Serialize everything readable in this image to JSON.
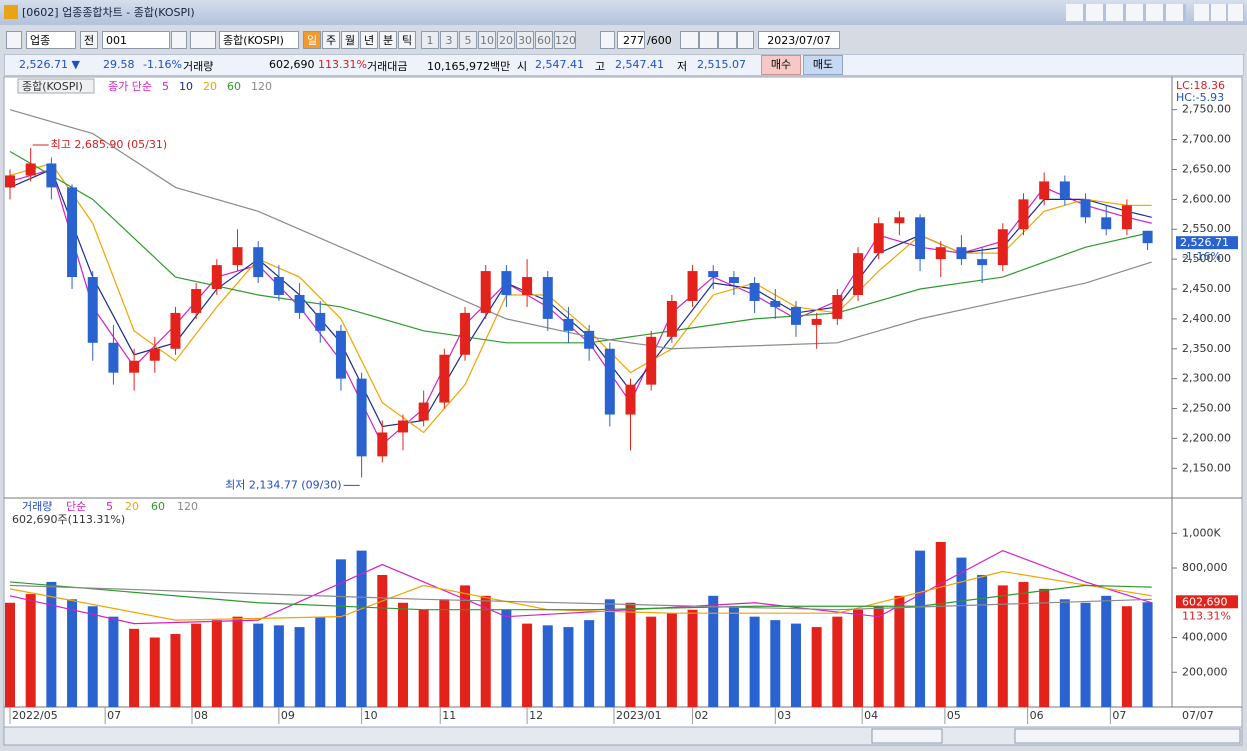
{
  "window": {
    "title": "[0602] 업종종합차트 - 종합(KOSPI)"
  },
  "toolbar": {
    "market": "업종",
    "all": "전",
    "code": "001",
    "name": "종합(KOSPI)",
    "periods": [
      "일",
      "주",
      "월",
      "년",
      "분",
      "틱"
    ],
    "intervals": [
      "1",
      "3",
      "5",
      "10",
      "20",
      "30",
      "60",
      "120"
    ],
    "count": "277",
    "max": "/600",
    "date": "2023/07/07"
  },
  "info": {
    "price": "2,526.71 ▼",
    "change": "29.58",
    "rate": "-1.16%",
    "volume_label": "거래량",
    "volume": "602,690",
    "volume_rate": "113.31%",
    "amount_label": "거래대금",
    "amount": "10,165,972백만",
    "open_label": "시",
    "open": "2,547.41",
    "high_label": "고",
    "high": "2,547.41",
    "low_label": "저",
    "low": "2,515.07",
    "buy": "매수",
    "sell": "매도"
  },
  "chart_data": [
    {
      "type": "candlestick",
      "title": "종합(KOSPI)",
      "legend_label": "종가 단순",
      "up_color": "#e3221b",
      "down_color": "#2a62d0",
      "x": [
        0,
        5,
        10,
        15,
        20,
        25,
        30,
        35,
        40,
        45,
        50,
        55,
        60,
        65,
        70,
        75,
        80,
        85,
        90,
        95,
        100,
        105,
        110,
        115,
        120,
        125,
        130,
        135,
        140,
        145,
        150,
        155,
        160,
        165,
        170,
        175,
        180,
        185,
        190,
        195,
        200,
        205,
        210,
        215,
        220,
        225,
        230,
        235,
        240,
        245,
        250,
        255,
        260,
        265,
        270,
        275
      ],
      "open": [
        2620,
        2640,
        2660,
        2620,
        2470,
        2360,
        2310,
        2330,
        2350,
        2410,
        2450,
        2490,
        2520,
        2470,
        2440,
        2410,
        2380,
        2300,
        2170,
        2210,
        2230,
        2260,
        2340,
        2410,
        2480,
        2440,
        2470,
        2400,
        2380,
        2350,
        2240,
        2290,
        2370,
        2430,
        2480,
        2470,
        2460,
        2430,
        2420,
        2390,
        2400,
        2440,
        2510,
        2560,
        2570,
        2500,
        2520,
        2500,
        2490,
        2550,
        2600,
        2630,
        2600,
        2570,
        2550,
        2547.41
      ],
      "high": [
        2650,
        2685.9,
        2670,
        2625,
        2480,
        2390,
        2350,
        2370,
        2420,
        2460,
        2500,
        2550,
        2530,
        2490,
        2460,
        2430,
        2390,
        2310,
        2230,
        2240,
        2280,
        2350,
        2420,
        2490,
        2490,
        2500,
        2480,
        2420,
        2390,
        2360,
        2300,
        2380,
        2440,
        2490,
        2490,
        2480,
        2470,
        2450,
        2430,
        2410,
        2450,
        2520,
        2570,
        2580,
        2575,
        2530,
        2540,
        2520,
        2560,
        2610,
        2645,
        2640,
        2610,
        2590,
        2600,
        2547.41
      ],
      "low": [
        2600,
        2630,
        2600,
        2450,
        2330,
        2290,
        2280,
        2310,
        2340,
        2400,
        2440,
        2480,
        2460,
        2430,
        2400,
        2360,
        2280,
        2134.77,
        2160,
        2180,
        2220,
        2250,
        2330,
        2400,
        2420,
        2420,
        2380,
        2360,
        2330,
        2220,
        2180,
        2280,
        2360,
        2420,
        2450,
        2440,
        2410,
        2400,
        2370,
        2350,
        2390,
        2430,
        2500,
        2540,
        2480,
        2470,
        2490,
        2460,
        2480,
        2540,
        2590,
        2590,
        2560,
        2540,
        2540,
        2515.07
      ],
      "close": [
        2640,
        2660,
        2620,
        2470,
        2360,
        2310,
        2330,
        2350,
        2410,
        2450,
        2490,
        2520,
        2470,
        2440,
        2410,
        2380,
        2300,
        2170,
        2210,
        2230,
        2260,
        2340,
        2410,
        2480,
        2440,
        2470,
        2400,
        2380,
        2350,
        2240,
        2290,
        2370,
        2430,
        2480,
        2470,
        2460,
        2430,
        2420,
        2390,
        2400,
        2440,
        2510,
        2560,
        2570,
        2500,
        2520,
        2500,
        2490,
        2550,
        2600,
        2630,
        2600,
        2570,
        2550,
        2590,
        2526.71
      ],
      "lines": [
        {
          "name": "5",
          "color": "#d21fc8",
          "x": [
            0,
            10,
            20,
            30,
            40,
            50,
            60,
            70,
            80,
            90,
            100,
            110,
            120,
            130,
            140,
            150,
            160,
            170,
            180,
            190,
            200,
            210,
            220,
            230,
            240,
            250,
            260,
            270,
            276
          ],
          "values": [
            2630,
            2650,
            2420,
            2320,
            2390,
            2470,
            2490,
            2420,
            2330,
            2190,
            2250,
            2390,
            2460,
            2420,
            2360,
            2260,
            2410,
            2470,
            2440,
            2400,
            2430,
            2540,
            2520,
            2510,
            2530,
            2620,
            2590,
            2570,
            2560
          ]
        },
        {
          "name": "10",
          "color": "#1c2a8c",
          "x": [
            0,
            10,
            20,
            30,
            40,
            50,
            60,
            70,
            80,
            90,
            100,
            110,
            120,
            130,
            140,
            150,
            160,
            170,
            180,
            190,
            200,
            210,
            220,
            230,
            240,
            250,
            260,
            270,
            276
          ],
          "values": [
            2620,
            2650,
            2470,
            2340,
            2360,
            2450,
            2500,
            2440,
            2360,
            2220,
            2230,
            2350,
            2460,
            2430,
            2370,
            2280,
            2370,
            2460,
            2450,
            2410,
            2420,
            2510,
            2540,
            2510,
            2520,
            2600,
            2600,
            2580,
            2570
          ]
        },
        {
          "name": "20",
          "color": "#f0a500",
          "x": [
            0,
            10,
            20,
            30,
            40,
            50,
            60,
            70,
            80,
            90,
            100,
            110,
            120,
            130,
            140,
            150,
            160,
            170,
            180,
            190,
            200,
            210,
            220,
            230,
            240,
            250,
            260,
            270,
            276
          ],
          "values": [
            2640,
            2660,
            2560,
            2380,
            2330,
            2420,
            2500,
            2470,
            2400,
            2260,
            2210,
            2290,
            2440,
            2440,
            2380,
            2310,
            2350,
            2440,
            2460,
            2420,
            2410,
            2480,
            2540,
            2510,
            2510,
            2580,
            2600,
            2590,
            2590
          ]
        },
        {
          "name": "60",
          "color": "#2e9a2e",
          "x": [
            0,
            20,
            40,
            60,
            80,
            100,
            120,
            140,
            160,
            180,
            200,
            220,
            240,
            260,
            276
          ],
          "values": [
            2680,
            2600,
            2470,
            2440,
            2420,
            2380,
            2360,
            2360,
            2380,
            2400,
            2410,
            2450,
            2470,
            2520,
            2545
          ]
        },
        {
          "name": "120",
          "color": "#8a8a8a",
          "x": [
            0,
            20,
            40,
            60,
            80,
            100,
            120,
            140,
            160,
            180,
            200,
            220,
            240,
            260,
            276
          ],
          "values": [
            2750,
            2710,
            2620,
            2580,
            2520,
            2460,
            2400,
            2370,
            2350,
            2355,
            2360,
            2400,
            2430,
            2460,
            2495
          ]
        }
      ],
      "xlim": [
        0,
        278
      ],
      "ylim": [
        2102,
        2793
      ],
      "yticks": [
        {
          "value": 2150,
          "label": "2,150.00"
        },
        {
          "value": 2200,
          "label": "2,200.00"
        },
        {
          "value": 2250,
          "label": "2,250.00"
        },
        {
          "value": 2300,
          "label": "2,300.00"
        },
        {
          "value": 2350,
          "label": "2,350.00"
        },
        {
          "value": 2400,
          "label": "2,400.00"
        },
        {
          "value": 2450,
          "label": "2,450.00"
        },
        {
          "value": 2500,
          "label": "2,500.00"
        },
        {
          "value": 2550,
          "label": "2,550.00"
        },
        {
          "value": 2600,
          "label": "2,600.00"
        },
        {
          "value": 2650,
          "label": "2,650.00"
        },
        {
          "value": 2700,
          "label": "2,700.00"
        },
        {
          "value": 2750,
          "label": "2,750.00"
        }
      ],
      "lc_label": "LC:18.36",
      "hc_label": "HC:-5.93",
      "high_note": "최고 2,685.90 (05/31)",
      "low_note": "최저 2,134.77 (09/30)",
      "price_label": "2,526.71",
      "rate_label": "-1.16%"
    },
    {
      "type": "volume",
      "title": "거래량",
      "legend_label": "단순",
      "summary": "602,690주(113.31%)",
      "x": [
        0,
        5,
        10,
        15,
        20,
        25,
        30,
        35,
        40,
        45,
        50,
        55,
        60,
        65,
        70,
        75,
        80,
        85,
        90,
        95,
        100,
        105,
        110,
        115,
        120,
        125,
        130,
        135,
        140,
        145,
        150,
        155,
        160,
        165,
        170,
        175,
        180,
        185,
        190,
        195,
        200,
        205,
        210,
        215,
        220,
        225,
        230,
        235,
        240,
        245,
        250,
        255,
        260,
        265,
        270,
        275
      ],
      "values": [
        600000,
        650000,
        720000,
        620000,
        580000,
        520000,
        450000,
        400000,
        420000,
        480000,
        500000,
        520000,
        480000,
        470000,
        460000,
        520000,
        850000,
        900000,
        760000,
        600000,
        560000,
        620000,
        700000,
        640000,
        560000,
        480000,
        470000,
        460000,
        500000,
        620000,
        600000,
        520000,
        540000,
        560000,
        640000,
        580000,
        520000,
        500000,
        480000,
        460000,
        520000,
        560000,
        580000,
        640000,
        900000,
        950000,
        860000,
        760000,
        700000,
        720000,
        680000,
        620000,
        600000,
        640000,
        580000,
        602690
      ],
      "lines": [
        {
          "name": "5",
          "color": "#d21fc8",
          "x": [
            0,
            30,
            60,
            90,
            120,
            150,
            180,
            210,
            240,
            260,
            276
          ],
          "values": [
            640000,
            480000,
            500000,
            820000,
            520000,
            560000,
            600000,
            520000,
            900000,
            720000,
            600000
          ]
        },
        {
          "name": "20",
          "color": "#f0a500",
          "x": [
            0,
            40,
            80,
            100,
            130,
            160,
            200,
            240,
            276
          ],
          "values": [
            680000,
            500000,
            520000,
            700000,
            560000,
            540000,
            540000,
            780000,
            640000
          ]
        },
        {
          "name": "60",
          "color": "#2e9a2e",
          "x": [
            0,
            60,
            100,
            140,
            180,
            220,
            260,
            276
          ],
          "values": [
            720000,
            600000,
            560000,
            560000,
            580000,
            580000,
            700000,
            690000
          ]
        },
        {
          "name": "120",
          "color": "#8a8a8a",
          "x": [
            0,
            100,
            200,
            276
          ],
          "values": [
            700000,
            620000,
            560000,
            620000
          ]
        }
      ],
      "xlim": [
        0,
        278
      ],
      "ylim": [
        0,
        1180000
      ],
      "yticks": [
        {
          "value": 200000,
          "label": "200,000"
        },
        {
          "value": 400000,
          "label": "400,000"
        },
        {
          "value": 800000,
          "label": "800,000"
        },
        {
          "value": 1000000,
          "label": "1,000K"
        }
      ],
      "xticks": [
        {
          "value": 0,
          "label": "2022/05"
        },
        {
          "value": 23,
          "label": "07"
        },
        {
          "value": 44,
          "label": "08"
        },
        {
          "value": 65,
          "label": "09"
        },
        {
          "value": 85,
          "label": "10"
        },
        {
          "value": 104,
          "label": "11"
        },
        {
          "value": 125,
          "label": "12"
        },
        {
          "value": 146,
          "label": "2023/01"
        },
        {
          "value": 165,
          "label": "02"
        },
        {
          "value": 185,
          "label": "03"
        },
        {
          "value": 206,
          "label": "04"
        },
        {
          "value": 226,
          "label": "05"
        },
        {
          "value": 246,
          "label": "06"
        },
        {
          "value": 266,
          "label": "07"
        }
      ],
      "end_label": "07/07",
      "last_label": "602,690",
      "last_rate": "113.31%"
    }
  ]
}
